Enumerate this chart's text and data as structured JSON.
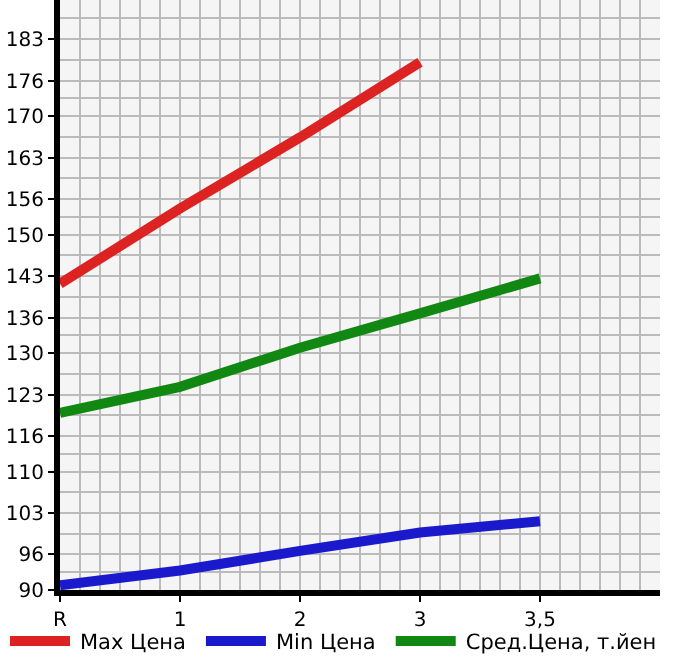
{
  "chart_data": {
    "type": "line",
    "categories": [
      "R",
      "1",
      "2",
      "3",
      "3,5"
    ],
    "series": [
      {
        "name": "Max Цена",
        "color": "#dd2222",
        "values": [
          141.7,
          154.4,
          166.4,
          179.1,
          null
        ]
      },
      {
        "name": "Min Цена",
        "color": "#1a1acc",
        "values": [
          90.8,
          93.3,
          96.6,
          99.7,
          101.6
        ]
      },
      {
        "name": "Сред.Цена, т.йен",
        "color": "#118811",
        "values": [
          119.9,
          124.3,
          130.9,
          136.7,
          142.6
        ]
      }
    ],
    "ylim": [
      90,
      189.6
    ],
    "yticks": [
      90,
      96,
      103,
      110,
      116,
      123,
      130,
      136,
      143,
      150,
      156,
      163,
      170,
      176,
      183
    ],
    "grid": true,
    "legend": "bottom",
    "marker": "none",
    "line_style": "solid"
  }
}
